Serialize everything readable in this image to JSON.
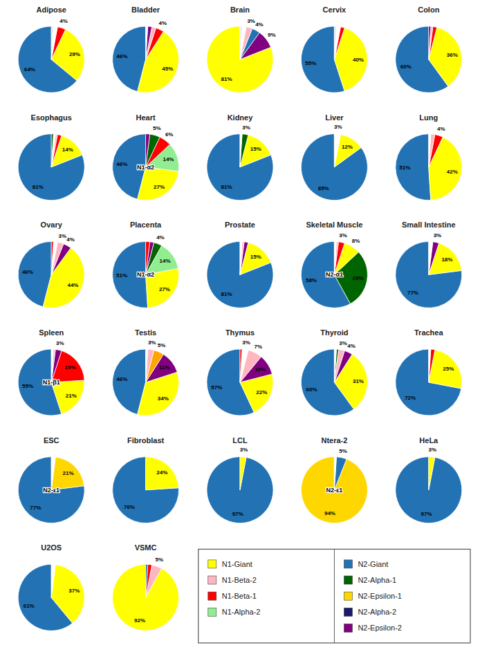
{
  "chart_data": [
    {
      "type": "pie",
      "title": "Adipose",
      "values": [
        64,
        29,
        4,
        2,
        1
      ],
      "colors": [
        "#2272B4",
        "#FFFF00",
        "#FF0000",
        "#FFFFFF",
        "#E8E8E8"
      ],
      "data_labels": true,
      "value_labels": [
        "64%",
        "29%",
        "4%",
        null,
        null
      ]
    },
    {
      "type": "pie",
      "title": "Bladder",
      "values": [
        46,
        45,
        4,
        2,
        2,
        1
      ],
      "colors": [
        "#2272B4",
        "#FFFF00",
        "#FF0000",
        "#FFB6C1",
        "#800080",
        "#FFFFFF"
      ],
      "data_labels": true,
      "value_labels": [
        "46%",
        "45%",
        "4%",
        null,
        null,
        null
      ]
    },
    {
      "type": "pie",
      "title": "Brain",
      "values": [
        81,
        9,
        4,
        3,
        2,
        1
      ],
      "colors": [
        "#FFFF00",
        "#800080",
        "#2272B4",
        "#FFB6C1",
        "#FFFFFF",
        "#E8E8E8"
      ],
      "data_labels": true,
      "value_labels": [
        "81%",
        "9%",
        "4%",
        "3%",
        null,
        null
      ]
    },
    {
      "type": "pie",
      "title": "Cervix",
      "values": [
        55,
        40,
        2,
        2,
        1
      ],
      "colors": [
        "#2272B4",
        "#FFFF00",
        "#FF0000",
        "#FFFFFF",
        "#E8E8E8"
      ],
      "data_labels": true,
      "value_labels": [
        "55%",
        "40%",
        null,
        null,
        null
      ]
    },
    {
      "type": "pie",
      "title": "Colon",
      "values": [
        60,
        36,
        2,
        1,
        1
      ],
      "colors": [
        "#2272B4",
        "#FFFF00",
        "#FF0000",
        "#FFB6C1",
        "#800080"
      ],
      "data_labels": true,
      "value_labels": [
        "60%",
        "36%",
        null,
        null,
        null
      ]
    },
    {
      "type": "pie",
      "title": "Esophagus",
      "values": [
        81,
        14,
        2,
        1,
        1,
        1
      ],
      "colors": [
        "#2272B4",
        "#FFFF00",
        "#FF0000",
        "#FFB6C1",
        "#FFFFFF",
        "#006400"
      ],
      "data_labels": true,
      "value_labels": [
        "81%",
        "14%",
        null,
        null,
        null,
        null
      ]
    },
    {
      "type": "pie",
      "title": "Heart",
      "values": [
        46,
        27,
        14,
        6,
        5,
        2
      ],
      "colors": [
        "#2272B4",
        "#FFFF00",
        "#90EE90",
        "#FF0000",
        "#006400",
        "#800080"
      ],
      "data_labels": true,
      "value_labels": [
        "46%",
        "27%",
        "14%",
        "6%",
        "5%",
        null
      ],
      "annotations": [
        "N1-α2"
      ]
    },
    {
      "type": "pie",
      "title": "Kidney",
      "values": [
        81,
        15,
        3,
        1
      ],
      "colors": [
        "#2272B4",
        "#FFFF00",
        "#006400",
        "#FFFFFF"
      ],
      "data_labels": true,
      "value_labels": [
        "81%",
        "15%",
        "3%",
        null
      ]
    },
    {
      "type": "pie",
      "title": "Liver",
      "values": [
        85,
        12,
        3
      ],
      "colors": [
        "#2272B4",
        "#FFFF00",
        "#FFFFFF"
      ],
      "data_labels": true,
      "value_labels": [
        "85%",
        "12%",
        "3%"
      ]
    },
    {
      "type": "pie",
      "title": "Lung",
      "values": [
        51,
        42,
        4,
        2,
        1
      ],
      "colors": [
        "#2272B4",
        "#FFFF00",
        "#FF0000",
        "#FFB6C1",
        "#FFFFFF"
      ],
      "data_labels": true,
      "value_labels": [
        "51%",
        "42%",
        "4%",
        null,
        null
      ]
    },
    {
      "type": "pie",
      "title": "Ovary",
      "values": [
        46,
        44,
        4,
        3,
        2,
        1
      ],
      "colors": [
        "#2272B4",
        "#FFFF00",
        "#800080",
        "#FFB6C1",
        "#FFFFFF",
        "#FF0000"
      ],
      "data_labels": true,
      "value_labels": [
        "46%",
        "44%",
        "4%",
        "3%",
        null,
        null
      ]
    },
    {
      "type": "pie",
      "title": "Placenta",
      "values": [
        51,
        27,
        14,
        4,
        2,
        2
      ],
      "colors": [
        "#2272B4",
        "#FFFF00",
        "#90EE90",
        "#006400",
        "#800080",
        "#FF0000"
      ],
      "data_labels": true,
      "value_labels": [
        "51%",
        "27%",
        "14%",
        "4%",
        null,
        null
      ],
      "annotations": [
        "N1-α2"
      ]
    },
    {
      "type": "pie",
      "title": "Prostate",
      "values": [
        81,
        15,
        2,
        1,
        1
      ],
      "colors": [
        "#2272B4",
        "#FFFF00",
        "#800080",
        "#FFB6C1",
        "#FFFFFF"
      ],
      "data_labels": true,
      "value_labels": [
        "81%",
        "15%",
        null,
        null,
        null
      ]
    },
    {
      "type": "pie",
      "title": "Skeletal Muscle",
      "values": [
        58,
        29,
        8,
        3,
        1,
        1
      ],
      "colors": [
        "#2272B4",
        "#006400",
        "#FFFF00",
        "#FF0000",
        "#FFB6C1",
        "#FFFFFF"
      ],
      "data_labels": true,
      "value_labels": [
        "58%",
        "29%",
        "8%",
        "3%",
        null,
        null
      ],
      "annotations": [
        "N2-α1"
      ]
    },
    {
      "type": "pie",
      "title": "Small Intestine",
      "values": [
        77,
        18,
        3,
        2
      ],
      "colors": [
        "#2272B4",
        "#FFFF00",
        "#800080",
        "#FFFFFF"
      ],
      "data_labels": true,
      "value_labels": [
        "77%",
        "18%",
        "3%",
        null
      ]
    },
    {
      "type": "pie",
      "title": "Spleen",
      "values": [
        55,
        21,
        19,
        3,
        1,
        1
      ],
      "colors": [
        "#2272B4",
        "#FFFF00",
        "#FF0000",
        "#800080",
        "#FFB6C1",
        "#FFFFFF"
      ],
      "data_labels": true,
      "value_labels": [
        "55%",
        "21%",
        "19%",
        "3%",
        null,
        null
      ],
      "annotations": [
        "N1-β1"
      ]
    },
    {
      "type": "pie",
      "title": "Testis",
      "values": [
        46,
        34,
        11,
        5,
        3,
        1
      ],
      "colors": [
        "#2272B4",
        "#FFFF00",
        "#800080",
        "#FFA500",
        "#FFB6C1",
        "#FFFFFF"
      ],
      "data_labels": true,
      "value_labels": [
        "46%",
        "34%",
        "11%",
        "5%",
        "3%",
        null
      ]
    },
    {
      "type": "pie",
      "title": "Thymus",
      "values": [
        57,
        22,
        10,
        7,
        3,
        1
      ],
      "colors": [
        "#2272B4",
        "#FFFF00",
        "#800080",
        "#FFB6C1",
        "#FFFFFF",
        "#FF0000"
      ],
      "data_labels": true,
      "value_labels": [
        "57%",
        "22%",
        "10%",
        "7%",
        "3%",
        null
      ]
    },
    {
      "type": "pie",
      "title": "Thyroid",
      "values": [
        60,
        31,
        4,
        3,
        1,
        1
      ],
      "colors": [
        "#2272B4",
        "#FFFF00",
        "#800080",
        "#FFB6C1",
        "#006400",
        "#FFFFFF"
      ],
      "data_labels": true,
      "value_labels": [
        "60%",
        "31%",
        "4%",
        "3%",
        null,
        null
      ]
    },
    {
      "type": "pie",
      "title": "Trachea",
      "values": [
        72,
        25,
        2,
        1
      ],
      "colors": [
        "#2272B4",
        "#FFFF00",
        "#FF0000",
        "#FFFFFF"
      ],
      "data_labels": true,
      "value_labels": [
        "72%",
        "25%",
        null,
        null
      ]
    },
    {
      "type": "pie",
      "title": "ESC",
      "values": [
        77,
        21,
        2
      ],
      "colors": [
        "#2272B4",
        "#FFD700",
        "#FFFFFF"
      ],
      "data_labels": true,
      "value_labels": [
        "77%",
        "21%",
        null
      ],
      "annotations": [
        "N2-ε1"
      ]
    },
    {
      "type": "pie",
      "title": "Fibroblast",
      "values": [
        76,
        24
      ],
      "colors": [
        "#2272B4",
        "#FFFF00"
      ],
      "data_labels": true,
      "value_labels": [
        "76%",
        "24%"
      ]
    },
    {
      "type": "pie",
      "title": "LCL",
      "values": [
        97,
        3
      ],
      "colors": [
        "#2272B4",
        "#FFFF00"
      ],
      "data_labels": true,
      "value_labels": [
        "97%",
        "3%"
      ]
    },
    {
      "type": "pie",
      "title": "Ntera-2",
      "values": [
        94,
        5,
        1
      ],
      "colors": [
        "#FFD700",
        "#2272B4",
        "#FFFFFF"
      ],
      "data_labels": true,
      "value_labels": [
        "94%",
        "5%",
        null
      ],
      "annotations": [
        "N2-ε1"
      ]
    },
    {
      "type": "pie",
      "title": "HeLa",
      "values": [
        97,
        3
      ],
      "colors": [
        "#2272B4",
        "#FFFF00"
      ],
      "data_labels": true,
      "value_labels": [
        "97%",
        "3%"
      ]
    },
    {
      "type": "pie",
      "title": "U2OS",
      "values": [
        61,
        37,
        2
      ],
      "colors": [
        "#2272B4",
        "#FFFF00",
        "#FFFFFF"
      ],
      "data_labels": true,
      "value_labels": [
        "61%",
        "37%",
        null
      ]
    },
    {
      "type": "pie",
      "title": "VSMC",
      "values": [
        92,
        5,
        2,
        1
      ],
      "colors": [
        "#FFFF00",
        "#FFB6C1",
        "#FF0000",
        "#2272B4"
      ],
      "data_labels": true,
      "value_labels": [
        "92%",
        "5%",
        null,
        null
      ]
    },
    {
      "type": "legend",
      "series": [
        {
          "name": "N1-Giant",
          "color": "#FFFF00"
        },
        {
          "name": "N1-Beta-2",
          "color": "#FFB6C1"
        },
        {
          "name": "N1-Beta-1",
          "color": "#FF0000"
        },
        {
          "name": "N1-Alpha-2",
          "color": "#90EE90"
        }
      ]
    },
    {
      "type": "legend",
      "series": [
        {
          "name": "N2-Giant",
          "color": "#2272B4"
        },
        {
          "name": "N2-Alpha-1",
          "color": "#006400"
        },
        {
          "name": "N2-Epsilon-1",
          "color": "#FFD700"
        },
        {
          "name": "N2-Alpha-2",
          "color": "#1A1A6E"
        },
        {
          "name": "N2-Epsilon-2",
          "color": "#800080"
        }
      ]
    }
  ]
}
